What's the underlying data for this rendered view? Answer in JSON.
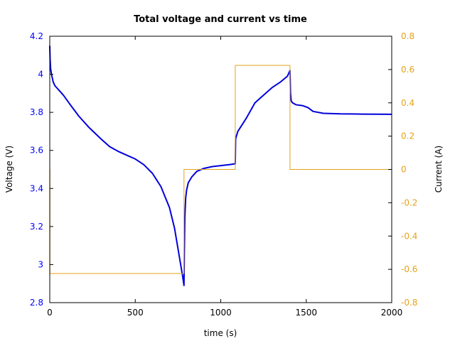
{
  "chart_data": {
    "type": "line",
    "title": "Total voltage and current vs time",
    "xlabel": "time (s)",
    "ylabel_left": "Voltage (V)",
    "ylabel_right": "Current (A)",
    "xlim": [
      0,
      2000
    ],
    "ylim_left": [
      2.8,
      4.2
    ],
    "ylim_right": [
      -0.8,
      0.8
    ],
    "x_ticks": [
      0,
      500,
      1000,
      1500,
      2000
    ],
    "x_tick_labels": [
      "0",
      "500",
      "1000",
      "1500",
      "2000"
    ],
    "y_left_ticks": [
      2.8,
      3.0,
      3.2,
      3.4,
      3.6,
      3.8,
      4.0,
      4.2
    ],
    "y_left_tick_labels": [
      "2.8",
      "3",
      "3.2",
      "3.4",
      "3.6",
      "3.8",
      "4",
      "4.2"
    ],
    "y_right_ticks": [
      -0.8,
      -0.6,
      -0.4,
      -0.2,
      0,
      0.2,
      0.4,
      0.6,
      0.8
    ],
    "y_right_tick_labels": [
      "-0.8",
      "-0.6",
      "-0.4",
      "-0.2",
      "0",
      "0.2",
      "0.4",
      "0.6",
      "0.8"
    ],
    "grid": false,
    "colors": {
      "voltage": "#0000dd",
      "current": "#e5a21a",
      "left_axis": "#0000ff",
      "right_axis": "#e5a21a"
    },
    "series": [
      {
        "axis": "left",
        "x": [
          0,
          2,
          5,
          10,
          15,
          20,
          30,
          50,
          80,
          120,
          170,
          230,
          300,
          350,
          400,
          450,
          500,
          550,
          600,
          650,
          700,
          730,
          760,
          775,
          785,
          787,
          790,
          795,
          800,
          810,
          830,
          860,
          900,
          950,
          1000,
          1050,
          1085,
          1087,
          1090,
          1100,
          1150,
          1200,
          1250,
          1300,
          1350,
          1390,
          1405,
          1408,
          1412,
          1420,
          1440,
          1480,
          1510,
          1540,
          1600,
          1700,
          1800,
          2000
        ],
        "y": [
          4.15,
          4.08,
          4.03,
          4.0,
          3.98,
          3.96,
          3.94,
          3.92,
          3.89,
          3.84,
          3.78,
          3.72,
          3.66,
          3.62,
          3.595,
          3.575,
          3.555,
          3.525,
          3.48,
          3.41,
          3.3,
          3.19,
          3.03,
          2.95,
          2.89,
          3.05,
          3.25,
          3.35,
          3.39,
          3.43,
          3.46,
          3.49,
          3.505,
          3.515,
          3.52,
          3.525,
          3.53,
          3.66,
          3.67,
          3.7,
          3.77,
          3.85,
          3.89,
          3.93,
          3.96,
          3.99,
          4.02,
          3.9,
          3.86,
          3.85,
          3.84,
          3.835,
          3.825,
          3.805,
          3.795,
          3.792,
          3.791,
          3.79
        ]
      },
      {
        "axis": "right",
        "x": [
          0,
          1,
          1,
          785,
          785,
          1085,
          1085,
          1405,
          1405,
          2000
        ],
        "y": [
          0,
          0,
          -0.625,
          -0.625,
          0,
          0,
          0.625,
          0.625,
          0,
          0
        ]
      }
    ]
  }
}
